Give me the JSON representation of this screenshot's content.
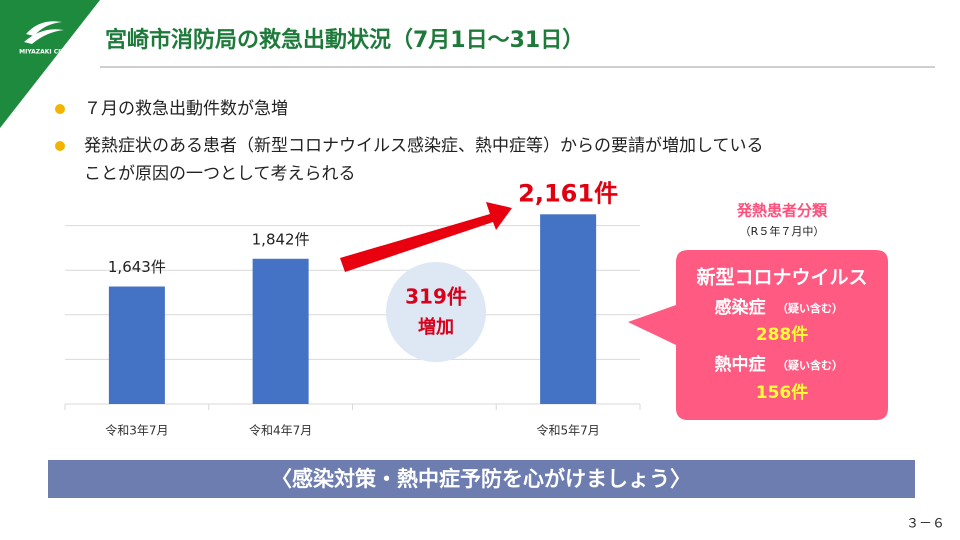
{
  "slide": {
    "logo": "MIYAZAKI CITY",
    "title": "宮崎市消防局の救急出動状況（7月1日～31日）",
    "bullets": [
      {
        "lines": [
          "７月の救急出動件数が急増"
        ]
      },
      {
        "lines": [
          "発熱症状のある患者（新型コロナウイルス感染症、熱中症等）からの要請が増加している",
          "ことが原因の一つとして考えられる"
        ]
      }
    ],
    "increase": {
      "amount": "319件",
      "label": "増加"
    },
    "fever": {
      "title": "発熱患者分類",
      "period": "（R５年７月中）",
      "covid_1": "新型コロナウイルス",
      "covid_2": "感染症",
      "covid_note": "（疑い含む）",
      "covid_count": "288件",
      "heat": "熱中症",
      "heat_note": "（疑い含む）",
      "heat_count": "156件"
    },
    "banner": "〈感染対策・熱中症予防を心がけましょう〉",
    "page": "３－６"
  },
  "chart_data": {
    "type": "bar",
    "categories": [
      "令和3年7月",
      "令和4年7月",
      null,
      "令和5年7月"
    ],
    "values": [
      1643,
      1842,
      null,
      2161
    ],
    "value_labels": [
      "1,643件",
      "1,842件",
      null,
      "2,161件"
    ],
    "color": "#4472c4",
    "ylim": [
      800,
      2400
    ],
    "yticks": [
      800,
      1120,
      1440,
      1760,
      2080
    ],
    "grid": true
  }
}
